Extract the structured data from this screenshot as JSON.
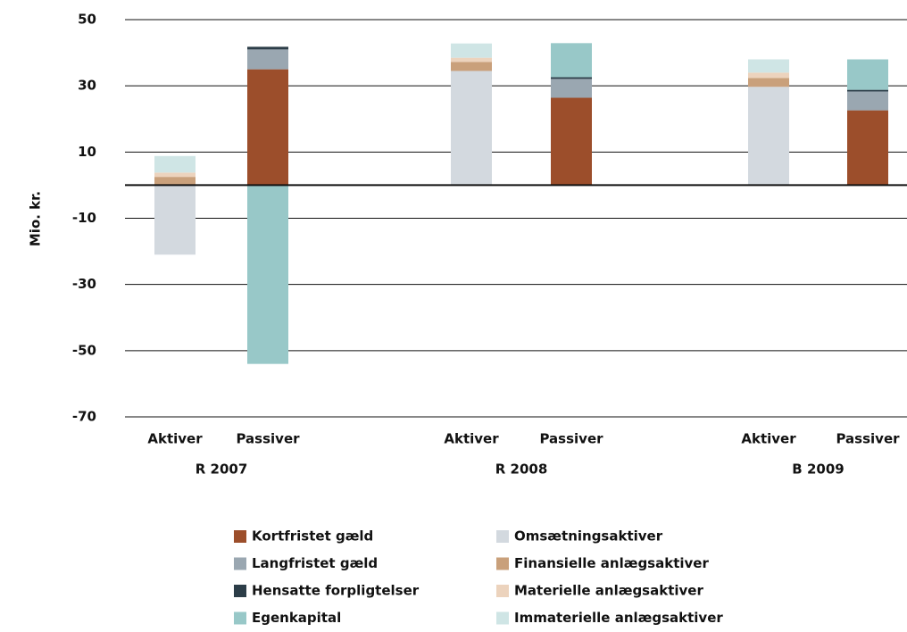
{
  "chart_data": {
    "type": "stacked_bar",
    "y_axis_label": "Mio. kr.",
    "categories": [
      "Aktiver",
      "Passiver",
      "Aktiver",
      "Passiver",
      "Aktiver",
      "Passiver"
    ],
    "groups": [
      "R 2007",
      "R 2008",
      "B 2009"
    ],
    "ylim": [
      -70,
      50
    ],
    "yticks": [
      50,
      30,
      10,
      -10,
      -30,
      -50,
      -70
    ],
    "grid": true,
    "series": [
      {
        "name": "Kortfristet gæld",
        "color": "#9c4e2b",
        "values": [
          null,
          35,
          null,
          26.4,
          null,
          22.6
        ]
      },
      {
        "name": "Langfristet gæld",
        "color": "#9aa7b1",
        "values": [
          null,
          6,
          null,
          5.7,
          null,
          5.7
        ]
      },
      {
        "name": "Hensatte forpligtelser",
        "color": "#2c3d48",
        "values": [
          null,
          0.8,
          null,
          0.5,
          null,
          0.5
        ]
      },
      {
        "name": "Egenkapital",
        "color": "#98c8c8",
        "values": [
          null,
          -54,
          null,
          10.3,
          null,
          9.2
        ]
      },
      {
        "name": "Omsætningsaktiver",
        "color": "#d3d9df",
        "values": [
          -21,
          null,
          34.5,
          null,
          29.7,
          null
        ]
      },
      {
        "name": "Finansielle anlægsaktiver",
        "color": "#c9a07b",
        "values": [
          2.5,
          null,
          2.7,
          null,
          2.7,
          null
        ]
      },
      {
        "name": "Materielle anlægsaktiver",
        "color": "#ecd3bd",
        "values": [
          1.3,
          null,
          1.3,
          null,
          1.6,
          null
        ]
      },
      {
        "name": "Immaterielle anlægsaktiver",
        "color": "#cfe5e5",
        "values": [
          5,
          null,
          4.3,
          null,
          4,
          null
        ]
      }
    ]
  }
}
